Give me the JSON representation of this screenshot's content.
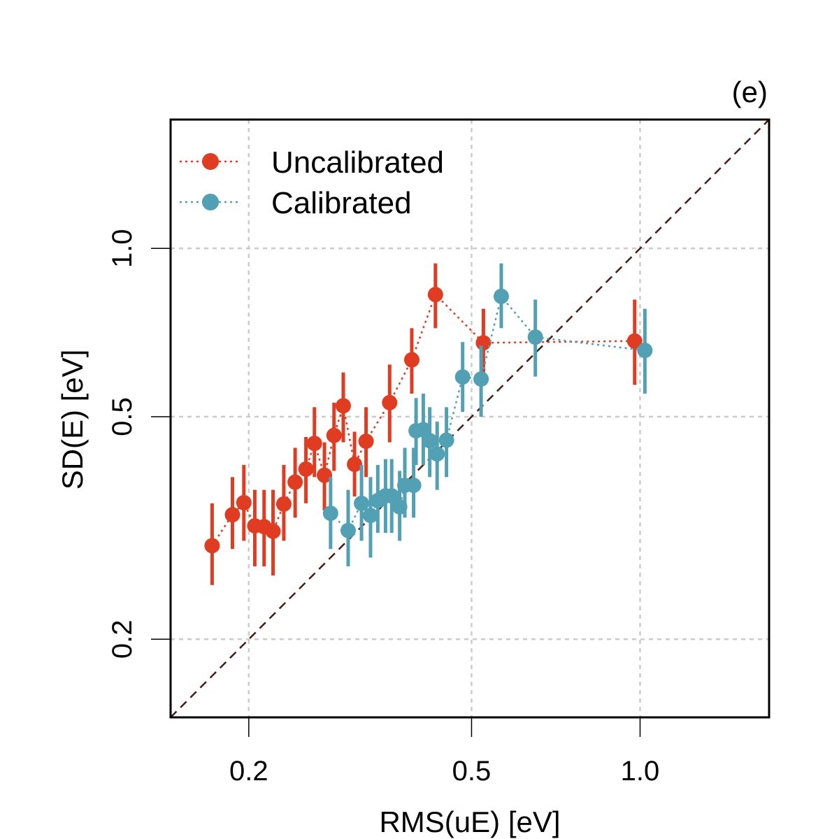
{
  "chart_data": {
    "type": "scatter",
    "panel_tag": "(e)",
    "xlabel": "RMS(uE) [eV]",
    "ylabel": "SD(E) [eV]",
    "log_x": true,
    "log_y": true,
    "xlim": [
      0.145,
      1.7
    ],
    "ylim": [
      0.145,
      1.7
    ],
    "x_ticks": [
      0.2,
      0.5,
      1.0
    ],
    "x_tick_labels": [
      "0.2",
      "0.5",
      "1.0"
    ],
    "y_ticks": [
      0.2,
      0.5,
      1.0
    ],
    "y_tick_labels": [
      "0.2",
      "0.5",
      "1.0"
    ],
    "grid": true,
    "identity_line": true,
    "legend_position": "top-left",
    "colors": {
      "uncalibrated": "#E03C22",
      "calibrated": "#52A0B4",
      "identity": "#4A1A14",
      "grid": "#CCCCCC"
    },
    "series": [
      {
        "name": "Uncalibrated",
        "color": "#E03C22",
        "points": [
          {
            "x": 0.172,
            "y": 0.294,
            "lo": 0.25,
            "hi": 0.35
          },
          {
            "x": 0.187,
            "y": 0.334,
            "lo": 0.29,
            "hi": 0.39
          },
          {
            "x": 0.196,
            "y": 0.351,
            "lo": 0.3,
            "hi": 0.41
          },
          {
            "x": 0.205,
            "y": 0.319,
            "lo": 0.27,
            "hi": 0.37
          },
          {
            "x": 0.213,
            "y": 0.318,
            "lo": 0.27,
            "hi": 0.37
          },
          {
            "x": 0.221,
            "y": 0.312,
            "lo": 0.26,
            "hi": 0.37
          },
          {
            "x": 0.231,
            "y": 0.349,
            "lo": 0.3,
            "hi": 0.41
          },
          {
            "x": 0.242,
            "y": 0.382,
            "lo": 0.33,
            "hi": 0.44
          },
          {
            "x": 0.253,
            "y": 0.403,
            "lo": 0.35,
            "hi": 0.46
          },
          {
            "x": 0.262,
            "y": 0.448,
            "lo": 0.39,
            "hi": 0.52
          },
          {
            "x": 0.273,
            "y": 0.393,
            "lo": 0.34,
            "hi": 0.45
          },
          {
            "x": 0.284,
            "y": 0.463,
            "lo": 0.4,
            "hi": 0.53
          },
          {
            "x": 0.295,
            "y": 0.523,
            "lo": 0.45,
            "hi": 0.6
          },
          {
            "x": 0.309,
            "y": 0.411,
            "lo": 0.36,
            "hi": 0.47
          },
          {
            "x": 0.324,
            "y": 0.452,
            "lo": 0.39,
            "hi": 0.52
          },
          {
            "x": 0.357,
            "y": 0.53,
            "lo": 0.45,
            "hi": 0.62
          },
          {
            "x": 0.391,
            "y": 0.632,
            "lo": 0.55,
            "hi": 0.72
          },
          {
            "x": 0.431,
            "y": 0.827,
            "lo": 0.72,
            "hi": 0.94
          },
          {
            "x": 0.525,
            "y": 0.678,
            "lo": 0.58,
            "hi": 0.78
          },
          {
            "x": 0.978,
            "y": 0.683,
            "lo": 0.57,
            "hi": 0.81
          }
        ]
      },
      {
        "name": "Calibrated",
        "color": "#52A0B4",
        "points": [
          {
            "x": 0.28,
            "y": 0.336,
            "lo": 0.29,
            "hi": 0.39
          },
          {
            "x": 0.301,
            "y": 0.313,
            "lo": 0.27,
            "hi": 0.37
          },
          {
            "x": 0.318,
            "y": 0.35,
            "lo": 0.3,
            "hi": 0.41
          },
          {
            "x": 0.33,
            "y": 0.333,
            "lo": 0.28,
            "hi": 0.39
          },
          {
            "x": 0.34,
            "y": 0.354,
            "lo": 0.31,
            "hi": 0.41
          },
          {
            "x": 0.351,
            "y": 0.361,
            "lo": 0.31,
            "hi": 0.42
          },
          {
            "x": 0.36,
            "y": 0.361,
            "lo": 0.31,
            "hi": 0.42
          },
          {
            "x": 0.372,
            "y": 0.345,
            "lo": 0.3,
            "hi": 0.4
          },
          {
            "x": 0.38,
            "y": 0.377,
            "lo": 0.33,
            "hi": 0.44
          },
          {
            "x": 0.394,
            "y": 0.377,
            "lo": 0.33,
            "hi": 0.44
          },
          {
            "x": 0.398,
            "y": 0.472,
            "lo": 0.41,
            "hi": 0.54
          },
          {
            "x": 0.41,
            "y": 0.474,
            "lo": 0.41,
            "hi": 0.55
          },
          {
            "x": 0.421,
            "y": 0.453,
            "lo": 0.39,
            "hi": 0.52
          },
          {
            "x": 0.434,
            "y": 0.429,
            "lo": 0.37,
            "hi": 0.49
          },
          {
            "x": 0.451,
            "y": 0.454,
            "lo": 0.39,
            "hi": 0.52
          },
          {
            "x": 0.482,
            "y": 0.589,
            "lo": 0.51,
            "hi": 0.68
          },
          {
            "x": 0.52,
            "y": 0.584,
            "lo": 0.5,
            "hi": 0.67
          },
          {
            "x": 0.565,
            "y": 0.821,
            "lo": 0.72,
            "hi": 0.94
          },
          {
            "x": 0.65,
            "y": 0.694,
            "lo": 0.59,
            "hi": 0.81
          },
          {
            "x": 1.02,
            "y": 0.657,
            "lo": 0.55,
            "hi": 0.78
          }
        ]
      }
    ]
  }
}
